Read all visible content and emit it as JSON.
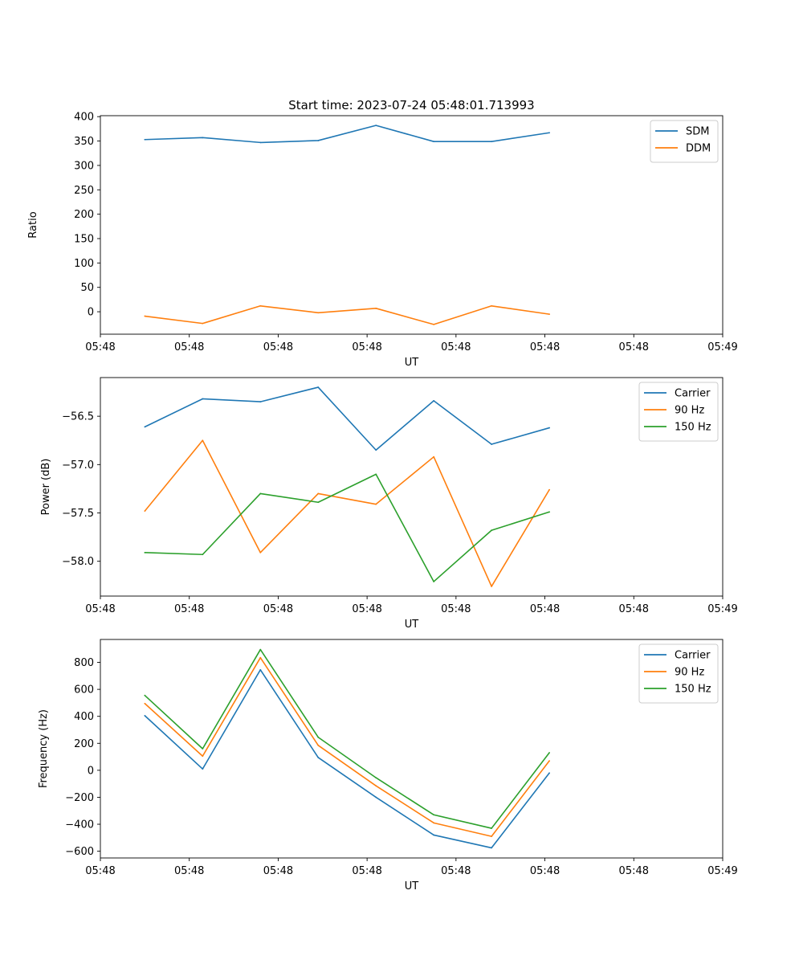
{
  "figure_title": "Start time: 2023-07-24 05:48:01.713993",
  "colors": {
    "blue": "#1f77b4",
    "orange": "#ff7f0e",
    "green": "#2ca02c"
  },
  "chart_data": [
    {
      "type": "line",
      "id": "ratio",
      "title": "Start time: 2023-07-24 05:48:01.713993",
      "xlabel": "UT",
      "ylabel": "Ratio",
      "x_ticks": [
        "05:48",
        "05:48",
        "05:48",
        "05:48",
        "05:48",
        "05:48",
        "05:48",
        "05:49"
      ],
      "x_tick_positions": [
        0,
        1,
        2,
        3,
        4,
        5,
        6,
        7
      ],
      "xlim": [
        0,
        7
      ],
      "x": [
        0.5,
        1.15,
        1.8,
        2.45,
        3.1,
        3.75,
        4.4,
        5.05
      ],
      "ylim": [
        -46,
        402
      ],
      "y_ticks": [
        0,
        50,
        100,
        150,
        200,
        250,
        300,
        350,
        400
      ],
      "y_tick_labels": [
        "0",
        "50",
        "100",
        "150",
        "200",
        "250",
        "300",
        "350",
        "400"
      ],
      "legend": "top-right",
      "series": [
        {
          "name": "SDM",
          "color": "#1f77b4",
          "values": [
            353,
            357,
            347,
            351,
            382,
            349,
            349,
            367
          ]
        },
        {
          "name": "DDM",
          "color": "#ff7f0e",
          "values": [
            -9,
            -24,
            12,
            -2,
            7,
            -26,
            12,
            -5
          ]
        }
      ]
    },
    {
      "type": "line",
      "id": "power",
      "title": "",
      "xlabel": "UT",
      "ylabel": "Power (dB)",
      "x_ticks": [
        "05:48",
        "05:48",
        "05:48",
        "05:48",
        "05:48",
        "05:48",
        "05:48",
        "05:49"
      ],
      "x_tick_positions": [
        0,
        1,
        2,
        3,
        4,
        5,
        6,
        7
      ],
      "xlim": [
        0,
        7
      ],
      "x": [
        0.5,
        1.15,
        1.8,
        2.45,
        3.1,
        3.75,
        4.4,
        5.05
      ],
      "ylim": [
        -58.36,
        -56.1
      ],
      "y_ticks": [
        -58.0,
        -57.5,
        -57.0,
        -56.5
      ],
      "y_tick_labels": [
        "−58.0",
        "−57.5",
        "−57.0",
        "−56.5"
      ],
      "legend": "top-right",
      "series": [
        {
          "name": "Carrier",
          "color": "#1f77b4",
          "values": [
            -56.61,
            -56.32,
            -56.35,
            -56.2,
            -56.85,
            -56.34,
            -56.79,
            -56.62
          ]
        },
        {
          "name": "90 Hz",
          "color": "#ff7f0e",
          "values": [
            -57.48,
            -56.75,
            -57.91,
            -57.3,
            -57.41,
            -56.92,
            -58.26,
            -57.26
          ]
        },
        {
          "name": "150 Hz",
          "color": "#2ca02c",
          "values": [
            -57.91,
            -57.93,
            -57.3,
            -57.39,
            -57.1,
            -58.21,
            -57.68,
            -57.49
          ]
        }
      ]
    },
    {
      "type": "line",
      "id": "frequency",
      "title": "",
      "xlabel": "UT",
      "ylabel": "Frequency (Hz)",
      "x_ticks": [
        "05:48",
        "05:48",
        "05:48",
        "05:48",
        "05:48",
        "05:48",
        "05:48",
        "05:49"
      ],
      "x_tick_positions": [
        0,
        1,
        2,
        3,
        4,
        5,
        6,
        7
      ],
      "xlim": [
        0,
        7
      ],
      "x": [
        0.5,
        1.15,
        1.8,
        2.45,
        3.1,
        3.75,
        4.4,
        5.05
      ],
      "ylim": [
        -650,
        970
      ],
      "y_ticks": [
        -600,
        -400,
        -200,
        0,
        200,
        400,
        600,
        800
      ],
      "y_tick_labels": [
        "−600",
        "−400",
        "−200",
        "0",
        "200",
        "400",
        "600",
        "800"
      ],
      "legend": "top-right",
      "series": [
        {
          "name": "Carrier",
          "color": "#1f77b4",
          "values": [
            405,
            10,
            745,
            95,
            -200,
            -480,
            -575,
            -20
          ]
        },
        {
          "name": "90 Hz",
          "color": "#ff7f0e",
          "values": [
            495,
            105,
            835,
            185,
            -115,
            -390,
            -490,
            70
          ]
        },
        {
          "name": "150 Hz",
          "color": "#2ca02c",
          "values": [
            555,
            160,
            895,
            245,
            -55,
            -330,
            -430,
            130
          ]
        }
      ]
    }
  ]
}
